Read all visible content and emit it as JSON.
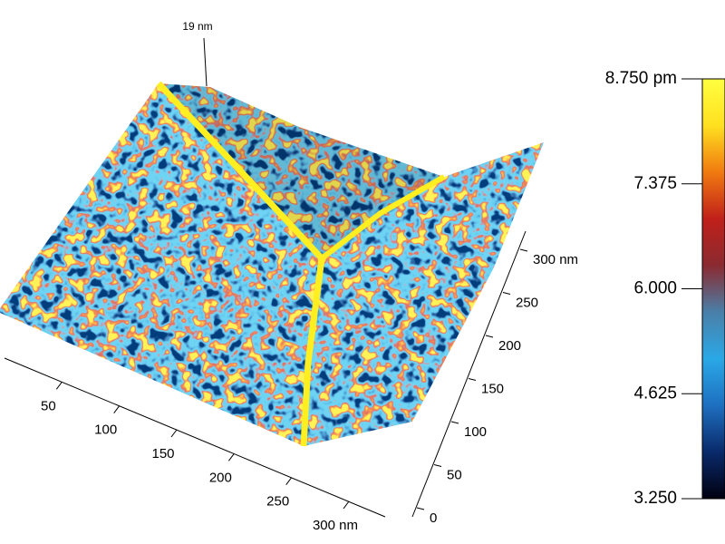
{
  "chart_data": {
    "type": "surface3d",
    "xlim": [
      0,
      300
    ],
    "xticks": [
      50,
      100,
      150,
      200,
      250,
      {
        "value": 300,
        "label": "300 nm"
      }
    ],
    "ylim": [
      0,
      300
    ],
    "yticks": [
      0,
      50,
      100,
      150,
      200,
      250,
      {
        "value": 300,
        "label": "300 nm"
      }
    ],
    "zticks": [
      {
        "value": 19,
        "label": "19 nm"
      }
    ],
    "colorbar": {
      "lim": [
        3.25,
        8.75
      ],
      "ticks": [
        {
          "value": 8.75,
          "label": "8.750 pm"
        },
        7.375,
        {
          "value": 6,
          "label": "6.000"
        },
        4.625,
        {
          "value": 3.25,
          "label": "3.250"
        }
      ],
      "colormap": [
        "#000010",
        "#0a2a6a",
        "#1e6fc0",
        "#2aa8e6",
        "#4a7fa8",
        "#8a2a30",
        "#c0201a",
        "#f07a10",
        "#ffe020",
        "#ffff40"
      ]
    }
  }
}
